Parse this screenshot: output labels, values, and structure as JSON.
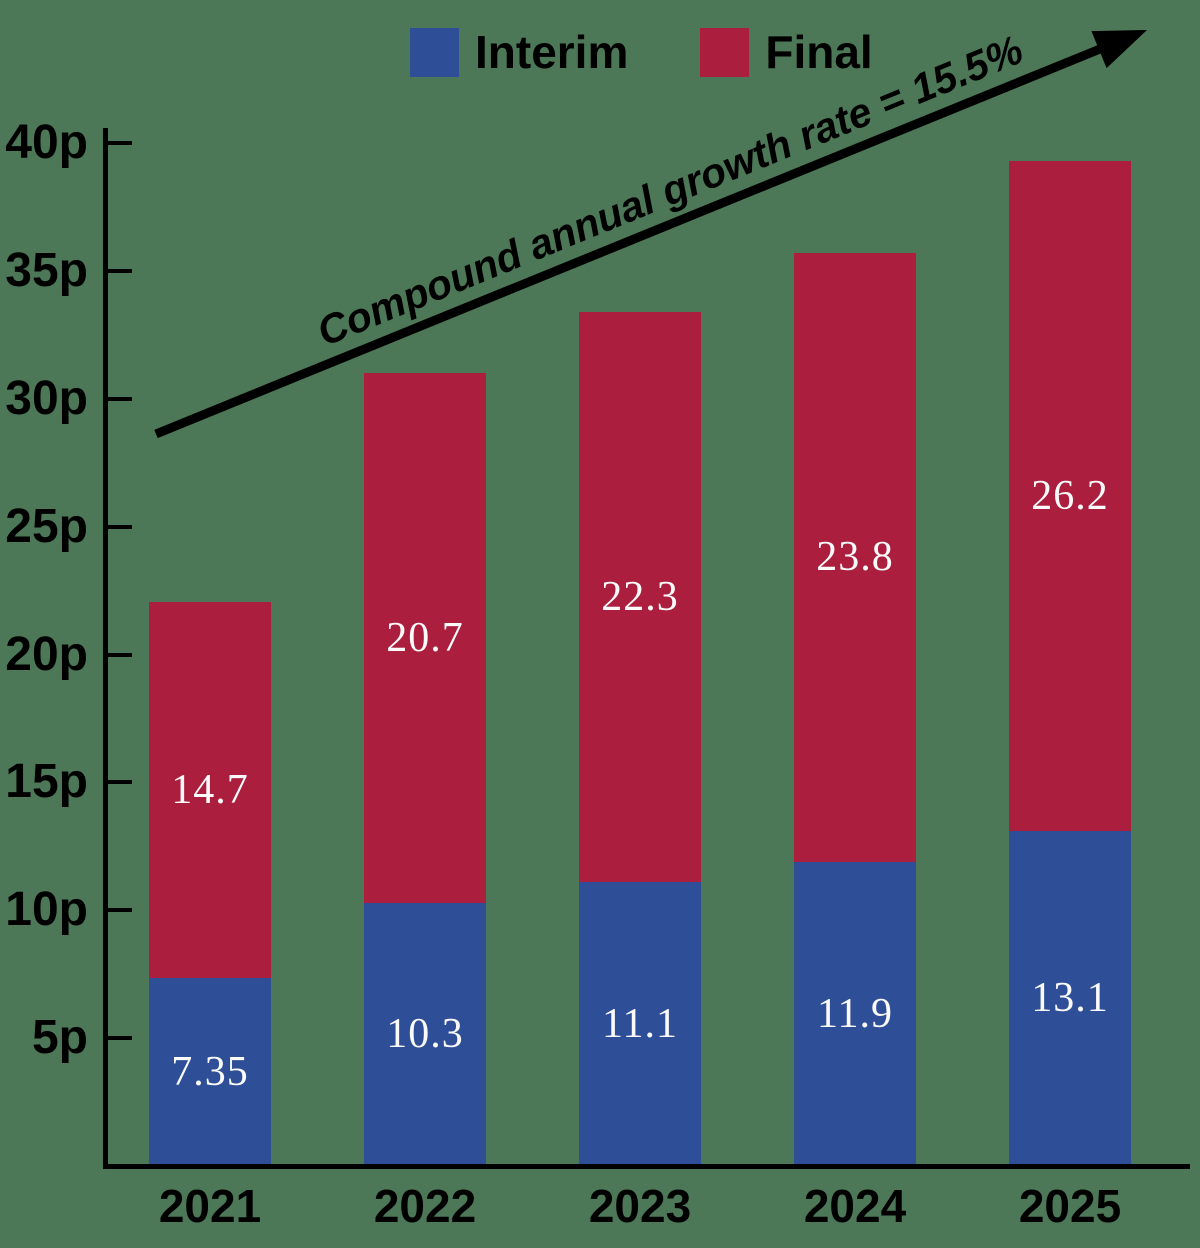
{
  "colors": {
    "background": "#4D7858",
    "axis": "#000000",
    "bar_value_text": "#FBFAFA",
    "interim": "#2E4F97",
    "final": "#AC1E3E"
  },
  "chart_data": {
    "type": "bar",
    "stacked": true,
    "categories": [
      "2021",
      "2022",
      "2023",
      "2024",
      "2025"
    ],
    "series": [
      {
        "name": "Interim",
        "color": "#2E4F97",
        "values": [
          7.35,
          10.3,
          11.1,
          11.9,
          13.1
        ],
        "value_labels": [
          "7.35",
          "10.3",
          "11.1",
          "11.9",
          "13.1"
        ]
      },
      {
        "name": "Final",
        "color": "#AC1E3E",
        "values": [
          14.7,
          20.7,
          22.3,
          23.8,
          26.2
        ],
        "value_labels": [
          "14.7",
          "20.7",
          "22.3",
          "23.8",
          "26.2"
        ]
      }
    ],
    "totals": [
      22.05,
      31.0,
      33.4,
      35.7,
      39.3
    ],
    "yticks": [
      5,
      10,
      15,
      20,
      25,
      30,
      35,
      40
    ],
    "ytick_labels": [
      "5p",
      "10p",
      "15p",
      "20p",
      "25p",
      "30p",
      "35p",
      "40p"
    ],
    "ylim": [
      0,
      40
    ],
    "unit": "p",
    "title": "",
    "xlabel": "",
    "ylabel": "",
    "grid": false,
    "legend_position": "top",
    "annotation": "Compound annual growth rate = 15.5%"
  }
}
